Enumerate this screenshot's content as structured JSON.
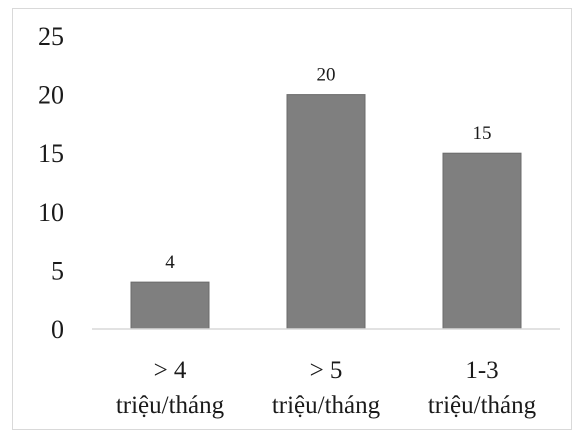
{
  "chart_data": {
    "type": "bar",
    "categories": [
      [
        "> 4",
        "triệu/tháng"
      ],
      [
        "> 5",
        "triệu/tháng"
      ],
      [
        "1-3",
        "triệu/tháng"
      ]
    ],
    "values": [
      4,
      20,
      15
    ],
    "data_labels": [
      "4",
      "20",
      "15"
    ],
    "ylim": [
      0,
      25
    ],
    "yticks": [
      "0",
      "5",
      "10",
      "15",
      "20",
      "25"
    ],
    "grid": false,
    "bar_color": "#7f7f7f",
    "title": "",
    "xlabel": "",
    "ylabel": ""
  }
}
